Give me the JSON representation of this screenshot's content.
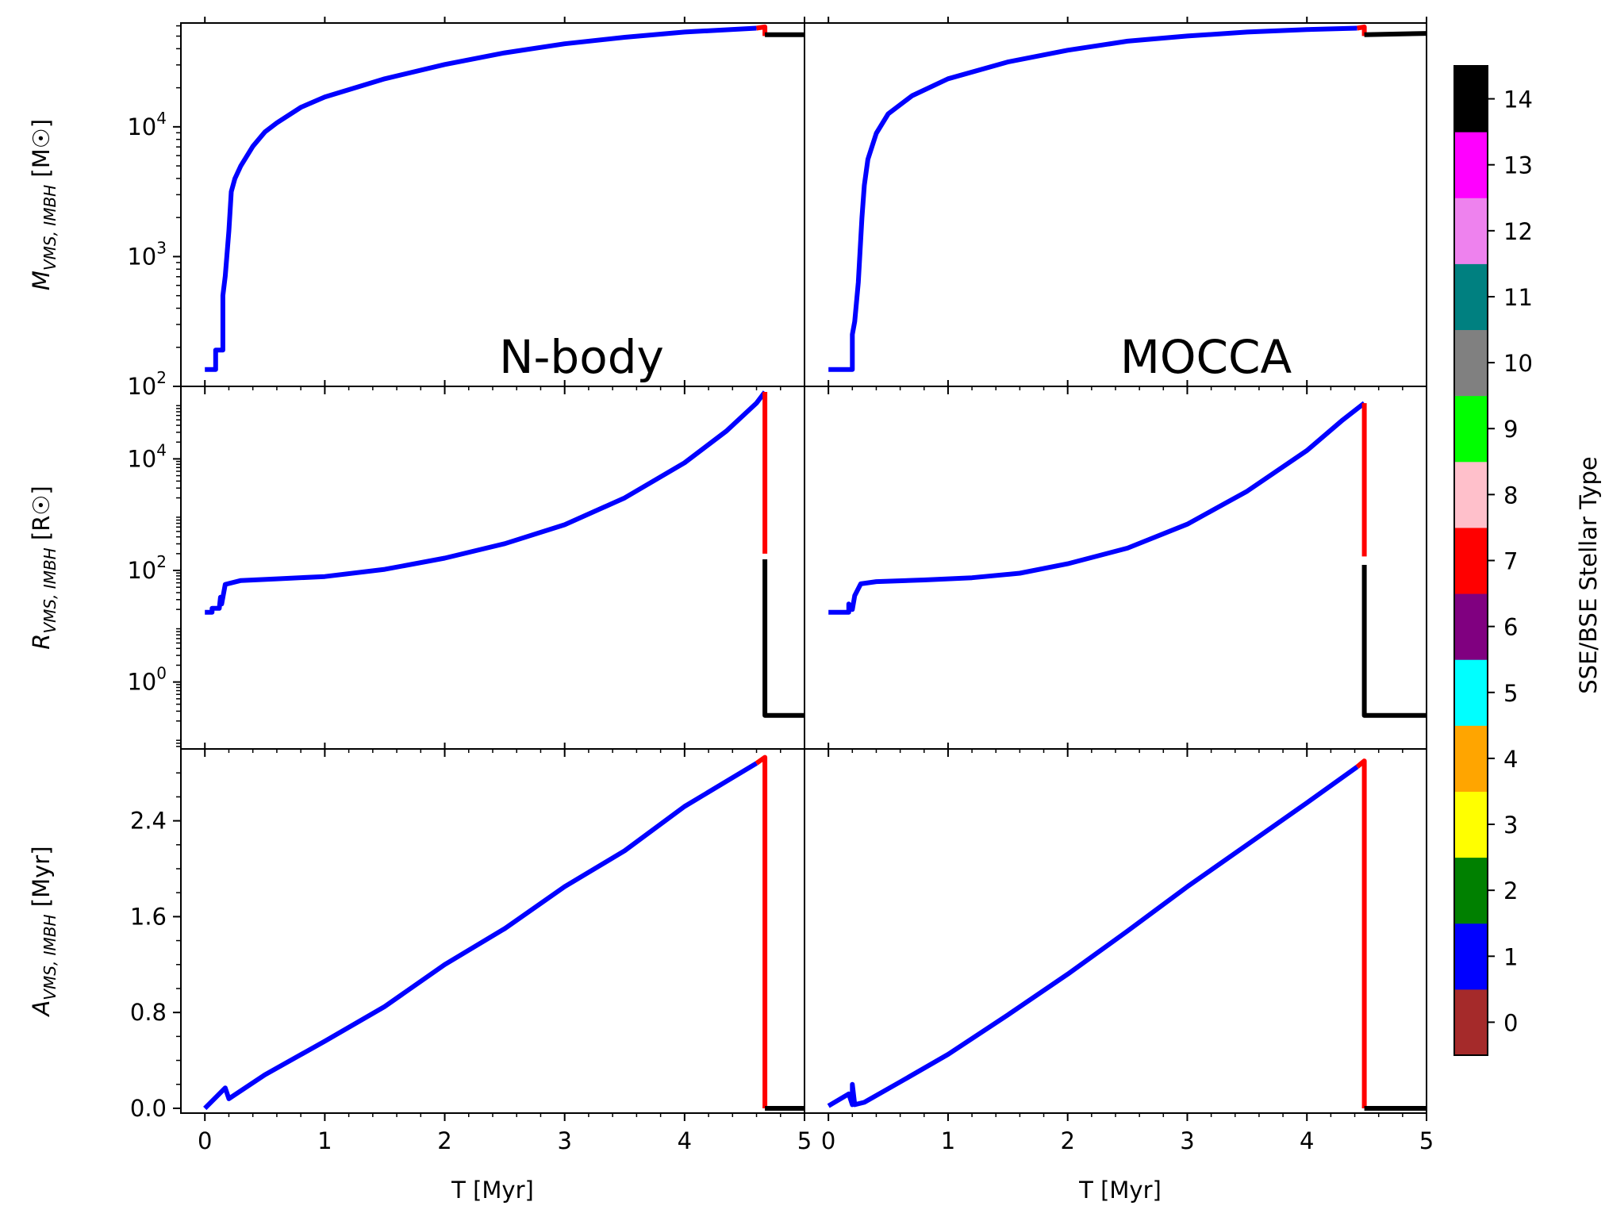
{
  "chart_data": {
    "type": "line",
    "colorbar": {
      "label": "SSE/BSE Stellar Type",
      "ticks": [
        "0",
        "1",
        "2",
        "3",
        "4",
        "5",
        "6",
        "7",
        "8",
        "9",
        "10",
        "11",
        "12",
        "13",
        "14"
      ],
      "colors": [
        "#a52a2a",
        "#0000ff",
        "#008000",
        "#ffff00",
        "#ffa500",
        "#00ffff",
        "#800080",
        "#ff0000",
        "#ffc0cb",
        "#00ff00",
        "#808080",
        "#008080",
        "#ee82ee",
        "#ff00ff",
        "#000000"
      ]
    },
    "x_axis": {
      "label": "T [Myr]",
      "range": [
        -0.2,
        5.0
      ],
      "ticks_left": [
        "0",
        "1",
        "2",
        "3",
        "4",
        "5"
      ],
      "ticks_right": [
        "0",
        "1",
        "2",
        "3",
        "4",
        "5"
      ]
    },
    "rows": [
      {
        "ylabel_main": "M",
        "ylabel_sub": "VMS, IMBH",
        "ylabel_unit": "[M☉]",
        "scale": "log",
        "ylim_log10": [
          2,
          4.8
        ],
        "ticks": [
          {
            "log10": 2,
            "label": "10",
            "exp": "2"
          },
          {
            "log10": 3,
            "label": "10",
            "exp": "3"
          },
          {
            "log10": 4,
            "label": "10",
            "exp": "4"
          }
        ]
      },
      {
        "ylabel_main": "R",
        "ylabel_sub": "VMS, IMBH",
        "ylabel_unit": "[R☉]",
        "scale": "log",
        "ylim_log10": [
          -1.2,
          5.3
        ],
        "ticks": [
          {
            "log10": 0,
            "label": "10",
            "exp": "0"
          },
          {
            "log10": 2,
            "label": "10",
            "exp": "2"
          },
          {
            "log10": 4,
            "label": "10",
            "exp": "4"
          }
        ]
      },
      {
        "ylabel_main": "A",
        "ylabel_sub": "VMS, IMBH",
        "ylabel_unit": "[Myr]",
        "scale": "linear",
        "ylim": [
          -0.04,
          3.0
        ],
        "ticks": [
          {
            "value": 0.0,
            "label": "0.0"
          },
          {
            "value": 0.8,
            "label": "0.8"
          },
          {
            "value": 1.6,
            "label": "1.6"
          },
          {
            "value": 2.4,
            "label": "2.4"
          }
        ]
      }
    ],
    "panels": [
      {
        "name": "N-body",
        "mass": {
          "blue": [
            [
              0,
              2.13
            ],
            [
              0.09,
              2.13
            ],
            [
              0.09,
              2.28
            ],
            [
              0.15,
              2.28
            ],
            [
              0.15,
              2.7
            ],
            [
              0.17,
              2.85
            ],
            [
              0.2,
              3.2
            ],
            [
              0.22,
              3.5
            ],
            [
              0.25,
              3.6
            ],
            [
              0.3,
              3.7
            ],
            [
              0.4,
              3.85
            ],
            [
              0.5,
              3.96
            ],
            [
              0.6,
              4.03
            ],
            [
              0.8,
              4.15
            ],
            [
              1.0,
              4.23
            ],
            [
              1.5,
              4.37
            ],
            [
              2.0,
              4.48
            ],
            [
              2.5,
              4.57
            ],
            [
              3.0,
              4.64
            ],
            [
              3.5,
              4.69
            ],
            [
              4.0,
              4.73
            ],
            [
              4.6,
              4.76
            ]
          ],
          "red": [
            [
              4.6,
              4.76
            ],
            [
              4.67,
              4.77
            ],
            [
              4.67,
              4.7
            ]
          ],
          "black": [
            [
              4.67,
              4.71
            ],
            [
              5.0,
              4.71
            ]
          ]
        },
        "radius": {
          "blue": [
            [
              0,
              1.25
            ],
            [
              0.06,
              1.25
            ],
            [
              0.06,
              1.32
            ],
            [
              0.12,
              1.32
            ],
            [
              0.13,
              1.52
            ],
            [
              0.14,
              1.4
            ],
            [
              0.17,
              1.75
            ],
            [
              0.3,
              1.82
            ],
            [
              0.6,
              1.85
            ],
            [
              1.0,
              1.89
            ],
            [
              1.5,
              2.02
            ],
            [
              2.0,
              2.22
            ],
            [
              2.5,
              2.48
            ],
            [
              3.0,
              2.82
            ],
            [
              3.5,
              3.3
            ],
            [
              4.0,
              3.93
            ],
            [
              4.35,
              4.5
            ],
            [
              4.6,
              5.0
            ],
            [
              4.67,
              5.2
            ]
          ],
          "red": [
            [
              4.67,
              5.2
            ],
            [
              4.67,
              2.3
            ]
          ],
          "black": [
            [
              4.67,
              2.2
            ],
            [
              4.67,
              -0.6
            ],
            [
              5.0,
              -0.6
            ]
          ]
        },
        "age": {
          "blue": [
            [
              0,
              0
            ],
            [
              0.17,
              0.17
            ],
            [
              0.2,
              0.08
            ],
            [
              0.5,
              0.28
            ],
            [
              1.0,
              0.56
            ],
            [
              1.5,
              0.85
            ],
            [
              2.0,
              1.2
            ],
            [
              2.5,
              1.5
            ],
            [
              3.0,
              1.85
            ],
            [
              3.5,
              2.15
            ],
            [
              4.0,
              2.52
            ],
            [
              4.6,
              2.88
            ]
          ],
          "red": [
            [
              4.6,
              2.88
            ],
            [
              4.67,
              2.93
            ],
            [
              4.67,
              0.0
            ]
          ],
          "black": [
            [
              4.67,
              0.0
            ],
            [
              5.0,
              0.0
            ]
          ]
        }
      },
      {
        "name": "MOCCA",
        "mass": {
          "blue": [
            [
              0,
              2.13
            ],
            [
              0.2,
              2.13
            ],
            [
              0.2,
              2.4
            ],
            [
              0.22,
              2.5
            ],
            [
              0.25,
              2.8
            ],
            [
              0.28,
              3.3
            ],
            [
              0.3,
              3.55
            ],
            [
              0.33,
              3.75
            ],
            [
              0.4,
              3.95
            ],
            [
              0.5,
              4.1
            ],
            [
              0.7,
              4.24
            ],
            [
              1.0,
              4.37
            ],
            [
              1.5,
              4.5
            ],
            [
              2.0,
              4.59
            ],
            [
              2.5,
              4.66
            ],
            [
              3.0,
              4.7
            ],
            [
              3.5,
              4.73
            ],
            [
              4.0,
              4.75
            ],
            [
              4.42,
              4.76
            ]
          ],
          "red": [
            [
              4.42,
              4.76
            ],
            [
              4.48,
              4.77
            ],
            [
              4.48,
              4.7
            ]
          ],
          "black": [
            [
              4.48,
              4.71
            ],
            [
              5.0,
              4.72
            ]
          ]
        },
        "radius": {
          "blue": [
            [
              0,
              1.25
            ],
            [
              0.17,
              1.25
            ],
            [
              0.17,
              1.4
            ],
            [
              0.2,
              1.3
            ],
            [
              0.22,
              1.55
            ],
            [
              0.27,
              1.76
            ],
            [
              0.4,
              1.8
            ],
            [
              0.8,
              1.83
            ],
            [
              1.2,
              1.87
            ],
            [
              1.6,
              1.95
            ],
            [
              2.0,
              2.12
            ],
            [
              2.5,
              2.4
            ],
            [
              3.0,
              2.83
            ],
            [
              3.5,
              3.42
            ],
            [
              4.0,
              4.15
            ],
            [
              4.3,
              4.7
            ],
            [
              4.48,
              5.0
            ]
          ],
          "red": [
            [
              4.48,
              5.0
            ],
            [
              4.48,
              2.25
            ]
          ],
          "black": [
            [
              4.48,
              2.1
            ],
            [
              4.48,
              -0.6
            ],
            [
              5.0,
              -0.6
            ]
          ]
        },
        "age": {
          "blue": [
            [
              0,
              0.02
            ],
            [
              0.17,
              0.12
            ],
            [
              0.2,
              0.03
            ],
            [
              0.2,
              0.2
            ],
            [
              0.22,
              0.03
            ],
            [
              0.3,
              0.05
            ],
            [
              0.6,
              0.22
            ],
            [
              1.0,
              0.45
            ],
            [
              1.5,
              0.78
            ],
            [
              2.0,
              1.12
            ],
            [
              2.5,
              1.48
            ],
            [
              3.0,
              1.85
            ],
            [
              3.5,
              2.2
            ],
            [
              4.0,
              2.55
            ],
            [
              4.42,
              2.85
            ]
          ],
          "red": [
            [
              4.42,
              2.85
            ],
            [
              4.48,
              2.9
            ],
            [
              4.48,
              0.0
            ]
          ],
          "black": [
            [
              4.48,
              0.0
            ],
            [
              5.0,
              0.0
            ]
          ]
        }
      }
    ],
    "series_colors": {
      "blue": "#0000ff",
      "red": "#ff0000",
      "black": "#000000"
    }
  }
}
